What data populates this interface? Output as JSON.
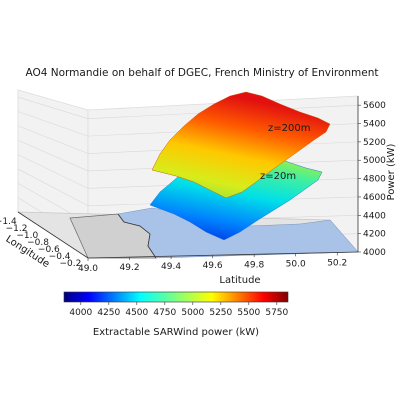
{
  "chart_data": {
    "type": "surface3d",
    "title": "AO4 Normandie on behalf of DGEC, French Ministry of Environment",
    "xlabel": "Latitude",
    "ylabel": "Longitude",
    "zlabel": "Power (kW)",
    "x_ticks": [
      "49.0",
      "49.2",
      "49.4",
      "49.6",
      "49.8",
      "50.0",
      "50.2"
    ],
    "y_ticks": [
      "−1.4",
      "−1.2",
      "−1.0",
      "−0.8",
      "−0.6",
      "−0.4",
      "−0.2"
    ],
    "z_ticks": [
      "4000",
      "4200",
      "4400",
      "4600",
      "4800",
      "5000",
      "5200",
      "5400",
      "5600"
    ],
    "xlim": [
      49.0,
      50.3
    ],
    "ylim": [
      -1.45,
      -0.15
    ],
    "zlim": [
      4000,
      5700
    ],
    "series": [
      {
        "name": "z=200m",
        "z_min": 4700,
        "z_max": 5700
      },
      {
        "name": "z=20m",
        "z_min": 4100,
        "z_max": 5100
      }
    ],
    "colorbar": {
      "label": "Extractable SARWind power (kW)",
      "ticks": [
        "4000",
        "4250",
        "4500",
        "4750",
        "5000",
        "5250",
        "5500",
        "5750"
      ],
      "range": [
        3850,
        5850
      ],
      "colormap": "jet"
    }
  }
}
